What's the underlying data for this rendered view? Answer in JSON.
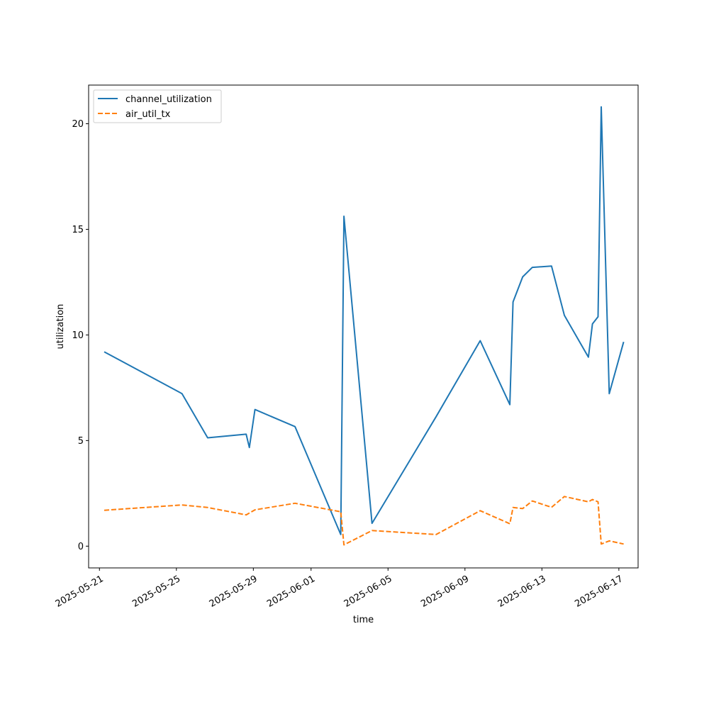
{
  "chart_data": {
    "type": "line",
    "title": "",
    "xlabel": "time",
    "ylabel": "utilization",
    "xlim": [
      "2025-05-20T10:30",
      "2025-06-18T00:00"
    ],
    "ylim": [
      -1.03,
      21.83
    ],
    "x_ticks": [
      "2025-05-21",
      "2025-05-25",
      "2025-05-29",
      "2025-06-01",
      "2025-06-05",
      "2025-06-09",
      "2025-06-13",
      "2025-06-17"
    ],
    "y_ticks": [
      0,
      5,
      10,
      15,
      20
    ],
    "grid": false,
    "legend_position": "upper left",
    "series": [
      {
        "name": "channel_utilization",
        "color": "#1f77b4",
        "style": "solid",
        "points": [
          [
            "2025-05-21T06:00",
            9.2
          ],
          [
            "2025-05-25T07:00",
            7.22
          ],
          [
            "2025-05-26T15:00",
            5.13
          ],
          [
            "2025-05-28T15:00",
            5.3
          ],
          [
            "2025-05-28T19:00",
            4.67
          ],
          [
            "2025-05-29T02:00",
            6.47
          ],
          [
            "2025-05-31T04:00",
            5.66
          ],
          [
            "2025-06-02T13:00",
            0.55
          ],
          [
            "2025-06-02T17:00",
            15.62
          ],
          [
            "2025-06-04T04:00",
            1.08
          ],
          [
            "2025-06-07T12:00",
            6.13
          ],
          [
            "2025-06-09T19:00",
            9.73
          ],
          [
            "2025-06-11T08:00",
            6.7
          ],
          [
            "2025-06-11T12:00",
            11.56
          ],
          [
            "2025-06-12T00:00",
            12.75
          ],
          [
            "2025-06-12T12:00",
            13.2
          ],
          [
            "2025-06-13T12:00",
            13.26
          ],
          [
            "2025-06-14T04:00",
            10.93
          ],
          [
            "2025-06-15T10:00",
            8.95
          ],
          [
            "2025-06-15T15:00",
            10.52
          ],
          [
            "2025-06-15T22:00",
            10.86
          ],
          [
            "2025-06-16T02:00",
            20.8
          ],
          [
            "2025-06-16T12:00",
            7.22
          ],
          [
            "2025-06-17T06:00",
            9.67
          ]
        ]
      },
      {
        "name": "air_util_tx",
        "color": "#ff7f0e",
        "style": "dashed",
        "points": [
          [
            "2025-05-21T06:00",
            1.7
          ],
          [
            "2025-05-25T07:00",
            1.95
          ],
          [
            "2025-05-26T15:00",
            1.83
          ],
          [
            "2025-05-28T15:00",
            1.48
          ],
          [
            "2025-05-29T02:00",
            1.72
          ],
          [
            "2025-05-31T04:00",
            2.03
          ],
          [
            "2025-06-02T13:00",
            1.63
          ],
          [
            "2025-06-02T17:00",
            0.06
          ],
          [
            "2025-06-04T04:00",
            0.74
          ],
          [
            "2025-06-07T12:00",
            0.55
          ],
          [
            "2025-06-09T19:00",
            1.68
          ],
          [
            "2025-06-11T08:00",
            1.06
          ],
          [
            "2025-06-11T12:00",
            1.83
          ],
          [
            "2025-06-12T00:00",
            1.78
          ],
          [
            "2025-06-12T12:00",
            2.14
          ],
          [
            "2025-06-13T12:00",
            1.84
          ],
          [
            "2025-06-14T04:00",
            2.35
          ],
          [
            "2025-06-15T10:00",
            2.1
          ],
          [
            "2025-06-15T15:00",
            2.21
          ],
          [
            "2025-06-15T22:00",
            2.1
          ],
          [
            "2025-06-16T02:00",
            0.1
          ],
          [
            "2025-06-16T12:00",
            0.25
          ],
          [
            "2025-06-17T06:00",
            0.1
          ]
        ]
      }
    ]
  }
}
